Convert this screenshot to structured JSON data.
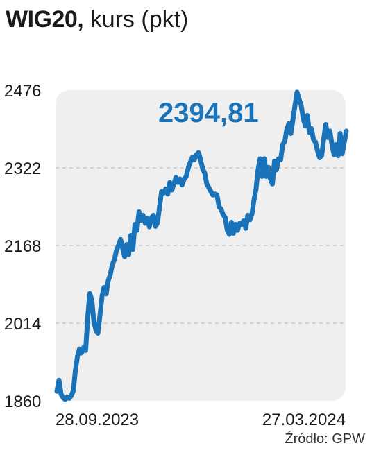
{
  "title": {
    "name": "WIG20,",
    "unit": "kurs (pkt)"
  },
  "source": "Źródło: GPW",
  "colors": {
    "line": "#1a73b8",
    "panel": "#efefef",
    "grid": "#c8c8c8",
    "text": "#1a1a1a"
  },
  "chart_data": {
    "type": "line",
    "title": "WIG20, kurs (pkt)",
    "xlabel": "",
    "ylabel": "",
    "x_tick_labels": [
      "28.09.2023",
      "27.03.2024"
    ],
    "y_ticks": [
      1860,
      2014,
      2168,
      2322,
      2476
    ],
    "y_tick_labels": [
      "1860",
      "2014",
      "2168",
      "2322",
      "2476"
    ],
    "ylim": [
      1860,
      2476
    ],
    "grid": "horizontal dashed",
    "annotation": "2394,81",
    "last_value": 2394.81,
    "series": [
      {
        "values": [
          1879,
          1901,
          1874,
          1866,
          1863,
          1868,
          1865,
          1870,
          1880,
          1920,
          1948,
          1963,
          1955,
          1966,
          1960,
          2025,
          2073,
          2060,
          2018,
          2000,
          1994,
          2030,
          2068,
          2085,
          2072,
          2098,
          2110,
          2130,
          2140,
          2158,
          2168,
          2180,
          2163,
          2146,
          2170,
          2150,
          2188,
          2160,
          2210,
          2198,
          2235,
          2218,
          2228,
          2212,
          2222,
          2205,
          2222,
          2228,
          2206,
          2213,
          2245,
          2275,
          2272,
          2280,
          2270,
          2293,
          2278,
          2290,
          2303,
          2293,
          2300,
          2288,
          2300,
          2305,
          2322,
          2333,
          2343,
          2338,
          2348,
          2352,
          2338,
          2320,
          2312,
          2290,
          2283,
          2275,
          2268,
          2270,
          2268,
          2245,
          2240,
          2229,
          2223,
          2198,
          2190,
          2214,
          2192,
          2210,
          2198,
          2212,
          2210,
          2217,
          2202,
          2228,
          2219,
          2230,
          2258,
          2280,
          2318,
          2340,
          2305,
          2340,
          2305,
          2323,
          2300,
          2290,
          2335,
          2318,
          2340,
          2338,
          2368,
          2374,
          2398,
          2410,
          2390,
          2418,
          2446,
          2472,
          2458,
          2446,
          2420,
          2405,
          2426,
          2392,
          2400,
          2378,
          2373,
          2355,
          2342,
          2346,
          2380,
          2408,
          2382,
          2395,
          2368,
          2348,
          2368,
          2346,
          2390,
          2350,
          2372,
          2394.81
        ]
      }
    ]
  }
}
